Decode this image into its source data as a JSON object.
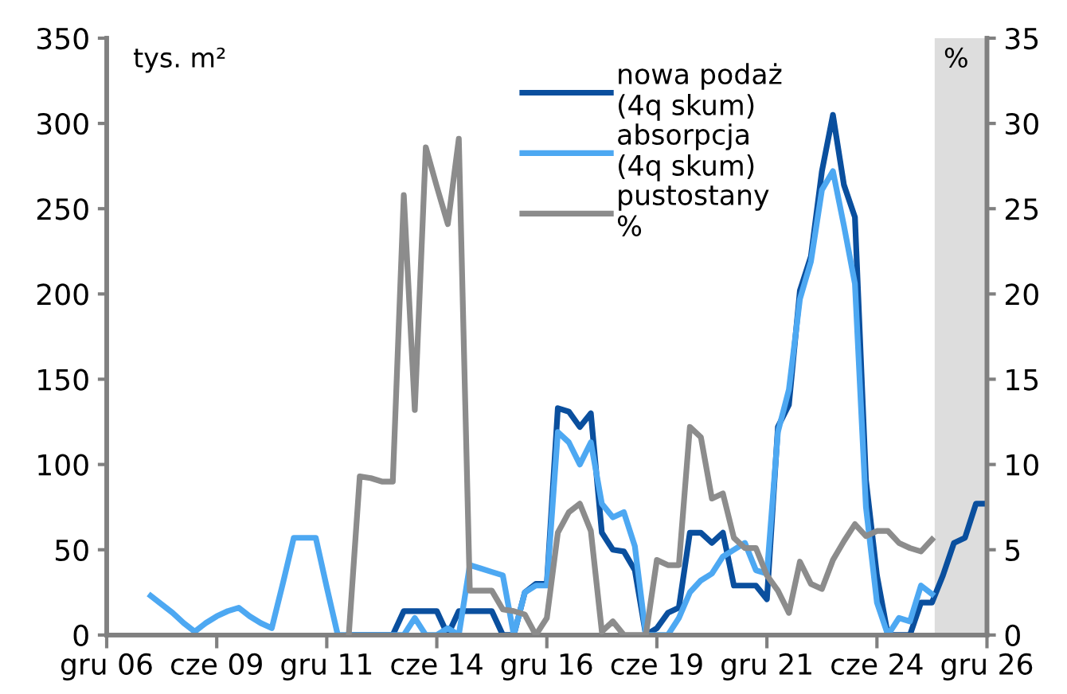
{
  "chart_data": {
    "type": "line",
    "ylabel": "tys. m²",
    "y2label": "%",
    "categories": [
      "gru 06",
      null,
      null,
      null,
      null,
      null,
      null,
      null,
      null,
      null,
      "cze 09",
      null,
      null,
      null,
      null,
      null,
      null,
      null,
      null,
      null,
      "gru 11",
      null,
      null,
      null,
      null,
      null,
      null,
      null,
      null,
      null,
      "cze 14",
      null,
      null,
      null,
      null,
      null,
      null,
      null,
      null,
      null,
      "gru 16",
      null,
      null,
      null,
      null,
      null,
      null,
      null,
      null,
      null,
      "cze 19",
      null,
      null,
      null,
      null,
      null,
      null,
      null,
      null,
      null,
      "gru 21",
      null,
      null,
      null,
      null,
      null,
      null,
      null,
      null,
      null,
      "cze 24",
      null,
      null,
      null,
      null,
      null,
      null,
      null,
      null,
      null,
      "gru 26"
    ],
    "series": [
      {
        "name": "nowa podaż (4q skum)",
        "color": "#0a4f9e",
        "values": [
          null,
          null,
          null,
          null,
          null,
          null,
          null,
          null,
          null,
          null,
          null,
          null,
          null,
          null,
          null,
          null,
          null,
          null,
          null,
          null,
          null,
          null,
          0,
          0,
          0,
          0,
          0,
          14,
          14,
          14,
          14,
          0,
          14,
          14,
          14,
          14,
          0,
          0,
          25,
          30,
          30,
          133,
          131,
          122,
          130,
          60,
          50,
          49,
          38,
          0,
          4,
          13,
          16,
          60,
          60,
          54,
          60,
          29,
          29,
          29,
          21,
          122,
          135,
          202,
          222,
          272,
          305,
          264,
          245,
          91,
          35,
          0,
          0,
          0,
          19,
          19,
          35,
          54,
          57,
          77,
          77
        ]
      },
      {
        "name": "absorpcja (4q skum)",
        "color": "#4da8f2",
        "values": [
          null,
          null,
          null,
          null,
          23,
          18,
          13,
          7,
          2,
          7,
          11,
          14,
          16,
          11,
          7,
          4,
          30,
          57,
          57,
          57,
          28,
          0,
          0,
          0,
          0,
          0,
          0,
          0,
          10,
          0,
          0,
          4,
          0,
          41,
          39,
          37,
          35,
          0,
          25,
          29,
          29,
          119,
          113,
          100,
          113,
          77,
          69,
          72,
          52,
          0,
          0,
          0,
          10,
          25,
          32,
          36,
          46,
          50,
          54,
          38,
          36,
          119,
          144,
          197,
          219,
          261,
          272,
          240,
          206,
          75,
          19,
          0,
          10,
          8,
          29,
          24,
          null,
          null,
          null,
          null,
          null
        ]
      },
      {
        "name": "pustostany %",
        "color": "#8c8c8c",
        "axis": "y2",
        "values": [
          null,
          null,
          null,
          null,
          null,
          null,
          null,
          null,
          null,
          null,
          null,
          null,
          null,
          null,
          null,
          null,
          null,
          null,
          null,
          null,
          null,
          null,
          0,
          9.3,
          9.2,
          9.0,
          9.0,
          25.8,
          13.2,
          28.6,
          26.3,
          24.1,
          29.1,
          2.6,
          2.6,
          2.6,
          1.5,
          1.4,
          1.2,
          0,
          1.0,
          6.0,
          7.2,
          7.7,
          6.1,
          0.2,
          0.8,
          0,
          0,
          0,
          4.4,
          4.1,
          4.1,
          12.2,
          11.6,
          8.0,
          8.3,
          5.7,
          5.1,
          5.1,
          3.5,
          2.6,
          1.3,
          4.3,
          3.0,
          2.7,
          4.4,
          5.5,
          6.5,
          5.8,
          6.1,
          6.1,
          5.4,
          5.1,
          4.9,
          5.6,
          null,
          null,
          null,
          null,
          null
        ]
      }
    ],
    "ylim": [
      0,
      350
    ],
    "yticks": [
      0,
      50,
      100,
      150,
      200,
      250,
      300,
      350
    ],
    "y2lim": [
      0,
      35
    ],
    "y2ticks": [
      0,
      5,
      10,
      15,
      20,
      25,
      30,
      35
    ],
    "grid": false,
    "legend": "top",
    "line_style": "solid",
    "marker": "none"
  }
}
